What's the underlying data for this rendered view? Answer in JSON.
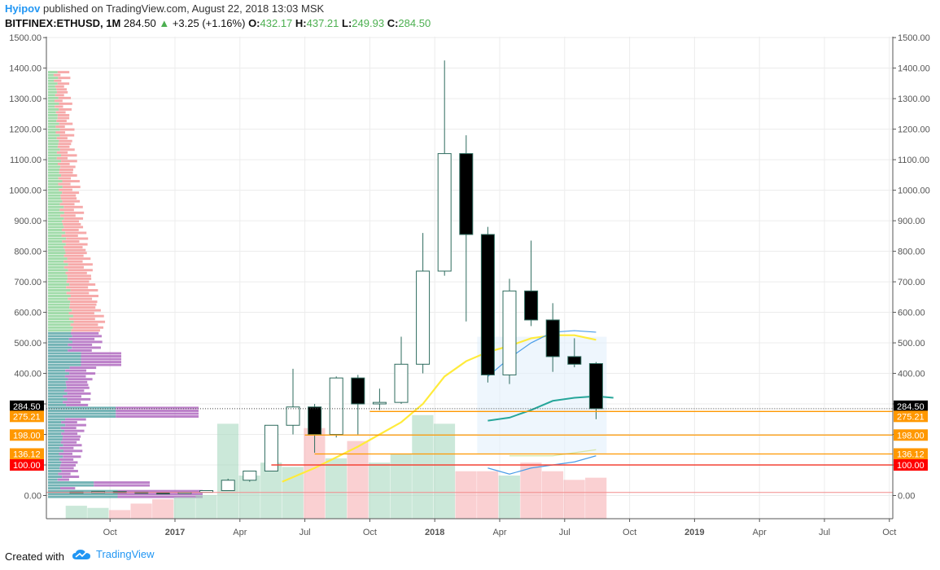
{
  "header": {
    "author": "Hyipov",
    "published_text": "published on TradingView.com, August 22, 2018 13:03 MSK",
    "symbol": "BITFINEX:ETHUSD, 1M",
    "last": "284.50",
    "change": "+3.25 (+1.16%)",
    "open_label": "O:",
    "open": "432.17",
    "high_label": "H:",
    "high": "437.21",
    "low_label": "L:",
    "low": "249.93",
    "close_label": "C:",
    "close": "284.50"
  },
  "footer": {
    "created_with": "Created with",
    "brand": "TradingView"
  },
  "colors": {
    "up_candle": "#ffffff",
    "down_candle": "#000000",
    "candle_border": "#2e6b5e",
    "volume_up": "#a8d8bf",
    "volume_down": "#f7b0b4",
    "yellow_ma": "#ffeb3b",
    "blue_line": "#4a9de8",
    "teal_line": "#26a69a",
    "orange_line": "#ff9800",
    "red_line": "#f44336"
  },
  "chart_data": {
    "type": "candlestick",
    "timeframe": "1M",
    "ylim": [
      -50,
      1500
    ],
    "y_ticks": [
      "1500.00",
      "1400.00",
      "1300.00",
      "1200.00",
      "1100.00",
      "1000.00",
      "900.00",
      "800.00",
      "700.00",
      "600.00",
      "500.00",
      "400.00",
      "300.00",
      "200.00",
      "100.00",
      "0.00"
    ],
    "x_ticks": [
      "Oct",
      "2017",
      "Apr",
      "Jul",
      "Oct",
      "2018",
      "Apr",
      "Jul",
      "Oct",
      "2019",
      "Apr",
      "Jul",
      "Oct"
    ],
    "candles": [
      {
        "date": "2016-08",
        "open": 11,
        "high": 12,
        "low": 10,
        "close": 11.5
      },
      {
        "date": "2016-09",
        "open": 11.5,
        "high": 14,
        "low": 11,
        "close": 13
      },
      {
        "date": "2016-10",
        "open": 13,
        "high": 13,
        "low": 10,
        "close": 11
      },
      {
        "date": "2016-11",
        "open": 11,
        "high": 11,
        "low": 8,
        "close": 9
      },
      {
        "date": "2016-12",
        "open": 9,
        "high": 9,
        "low": 7,
        "close": 8
      },
      {
        "date": "2017-01",
        "open": 8,
        "high": 11,
        "low": 8,
        "close": 10.5
      },
      {
        "date": "2017-02",
        "open": 10.5,
        "high": 16,
        "low": 10,
        "close": 16
      },
      {
        "date": "2017-03",
        "open": 16,
        "high": 55,
        "low": 15,
        "close": 50
      },
      {
        "date": "2017-04",
        "open": 50,
        "high": 80,
        "low": 45,
        "close": 80
      },
      {
        "date": "2017-05",
        "open": 80,
        "high": 230,
        "low": 80,
        "close": 230
      },
      {
        "date": "2017-06",
        "open": 230,
        "high": 415,
        "low": 200,
        "close": 290
      },
      {
        "date": "2017-07",
        "open": 290,
        "high": 300,
        "low": 140,
        "close": 200
      },
      {
        "date": "2017-08",
        "open": 200,
        "high": 390,
        "low": 190,
        "close": 385
      },
      {
        "date": "2017-09",
        "open": 385,
        "high": 395,
        "low": 200,
        "close": 300
      },
      {
        "date": "2017-10",
        "open": 300,
        "high": 350,
        "low": 280,
        "close": 305
      },
      {
        "date": "2017-11",
        "open": 305,
        "high": 520,
        "low": 300,
        "close": 430
      },
      {
        "date": "2017-12",
        "open": 430,
        "high": 860,
        "low": 400,
        "close": 735
      },
      {
        "date": "2018-01",
        "open": 735,
        "high": 1425,
        "low": 720,
        "close": 1120
      },
      {
        "date": "2018-02",
        "open": 1120,
        "high": 1180,
        "low": 570,
        "close": 855
      },
      {
        "date": "2018-03",
        "open": 855,
        "high": 880,
        "low": 370,
        "close": 395
      },
      {
        "date": "2018-04",
        "open": 395,
        "high": 710,
        "low": 365,
        "close": 670
      },
      {
        "date": "2018-05",
        "open": 670,
        "high": 835,
        "low": 555,
        "close": 575
      },
      {
        "date": "2018-06",
        "open": 575,
        "high": 630,
        "low": 405,
        "close": 455
      },
      {
        "date": "2018-07",
        "open": 455,
        "high": 515,
        "low": 420,
        "close": 430
      },
      {
        "date": "2018-08",
        "open": 432.17,
        "high": 437.21,
        "low": 249.93,
        "close": 284.5
      }
    ],
    "price_levels": [
      {
        "label": "284.50",
        "value": 284.5,
        "color": "#000000"
      },
      {
        "label": "275.21",
        "value": 275.21,
        "color": "#ff9800"
      },
      {
        "label": "198.00",
        "value": 198,
        "color": "#ff9800"
      },
      {
        "label": "136.12",
        "value": 136.12,
        "color": "#ff9800"
      },
      {
        "label": "100.00",
        "value": 100,
        "color": "#ff0000"
      }
    ]
  }
}
